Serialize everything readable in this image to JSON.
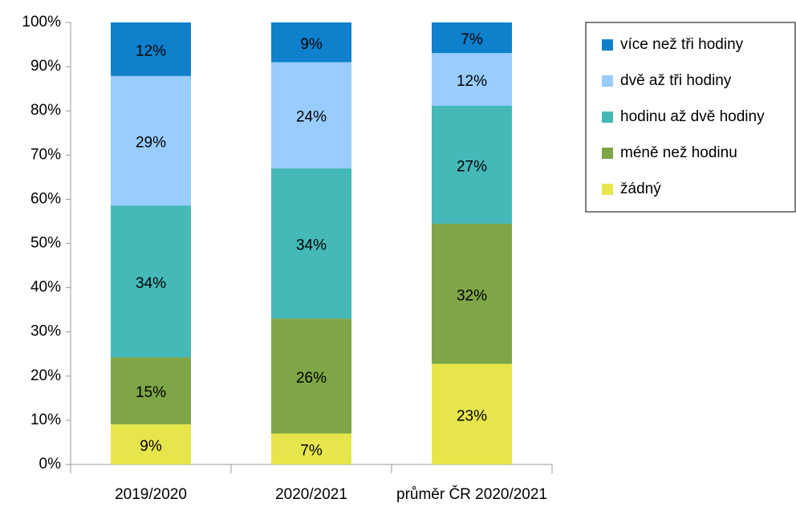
{
  "chart_data": {
    "type": "bar",
    "stacking": "percent",
    "categories": [
      "2019/2020",
      "2020/2021",
      "průměr ČR 2020/2021"
    ],
    "series": [
      {
        "name": "žádný",
        "color": "#e6e64c",
        "values": [
          9,
          7,
          23
        ],
        "value_labels": [
          "9%",
          "7%",
          "23%"
        ]
      },
      {
        "name": "méně než hodinu",
        "color": "#7ea646",
        "values": [
          15,
          26,
          32
        ],
        "value_labels": [
          "15%",
          "26%",
          "32%"
        ]
      },
      {
        "name": "hodinu až dvě hodiny",
        "color": "#45b8b8",
        "values": [
          34,
          34,
          27
        ],
        "value_labels": [
          "34%",
          "34%",
          "27%"
        ]
      },
      {
        "name": "dvě až tři hodiny",
        "color": "#99ccff",
        "values": [
          29,
          24,
          12
        ],
        "value_labels": [
          "29%",
          "24%",
          "12%"
        ]
      },
      {
        "name": "více než tři hodiny",
        "color": "#0f80cc",
        "values": [
          12,
          9,
          7
        ],
        "value_labels": [
          "12%",
          "9%",
          "7%"
        ]
      }
    ],
    "ylim": [
      0,
      100
    ],
    "yticks": [
      {
        "value": 0,
        "label": "0%"
      },
      {
        "value": 10,
        "label": "10%"
      },
      {
        "value": 20,
        "label": "20%"
      },
      {
        "value": 30,
        "label": "30%"
      },
      {
        "value": 40,
        "label": "40%"
      },
      {
        "value": 50,
        "label": "50%"
      },
      {
        "value": 60,
        "label": "60%"
      },
      {
        "value": 70,
        "label": "70%"
      },
      {
        "value": 80,
        "label": "80%"
      },
      {
        "value": 90,
        "label": "90%"
      },
      {
        "value": 100,
        "label": "100%"
      }
    ],
    "grid": false,
    "legend": "right"
  }
}
